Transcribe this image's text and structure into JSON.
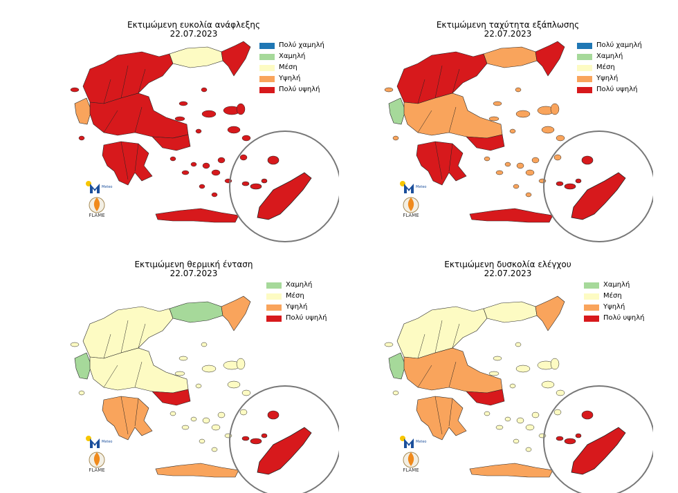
{
  "colors": {
    "very_low": "#1f77b4",
    "low": "#a6d99a",
    "medium": "#fdfbc3",
    "high": "#f9a45c",
    "very_high": "#d7191c",
    "border": "#222222",
    "inset_circle": "#777777"
  },
  "panels": [
    {
      "id": "ignition",
      "title": "Εκτιμώμενη ευκολία ανάφλεξης",
      "date": "22.07.2023",
      "legend": [
        {
          "label": "Πολύ χαμηλή",
          "level": "very_low"
        },
        {
          "label": "Χαμηλή",
          "level": "low"
        },
        {
          "label": "Μέση",
          "level": "medium"
        },
        {
          "label": "Υψηλή",
          "level": "high"
        },
        {
          "label": "Πολύ υψηλή",
          "level": "very_high"
        }
      ],
      "regions": {
        "north": "very_high",
        "northeast": "medium",
        "thrace": "very_high",
        "west": "high",
        "central": "very_high",
        "peloponnese": "very_high",
        "attica": "very_high",
        "crete": "very_high",
        "islands": "very_high",
        "rhodes": "very_high"
      }
    },
    {
      "id": "spread",
      "title": "Εκτιμώμενη ταχύτητα εξάπλωσης",
      "date": "22.07.2023",
      "legend": [
        {
          "label": "Πολύ χαμηλή",
          "level": "very_low"
        },
        {
          "label": "Χαμηλή",
          "level": "low"
        },
        {
          "label": "Μέση",
          "level": "medium"
        },
        {
          "label": "Υψηλή",
          "level": "high"
        },
        {
          "label": "Πολύ υψηλή",
          "level": "very_high"
        }
      ],
      "regions": {
        "north": "very_high",
        "northeast": "high",
        "thrace": "very_high",
        "west": "low",
        "central": "high",
        "peloponnese": "very_high",
        "attica": "very_high",
        "crete": "very_high",
        "islands": "high",
        "rhodes": "very_high"
      }
    },
    {
      "id": "thermal",
      "title": "Εκτιμώμενη θερμική ένταση",
      "date": "22.07.2023",
      "legend": [
        {
          "label": "Χαμηλή",
          "level": "low"
        },
        {
          "label": "Μέση",
          "level": "medium"
        },
        {
          "label": "Υψηλή",
          "level": "high"
        },
        {
          "label": "Πολύ υψηλή",
          "level": "very_high"
        }
      ],
      "regions": {
        "north": "medium",
        "northeast": "low",
        "thrace": "high",
        "west": "low",
        "central": "medium",
        "peloponnese": "high",
        "attica": "very_high",
        "crete": "high",
        "islands": "medium",
        "rhodes": "very_high"
      }
    },
    {
      "id": "control",
      "title": "Εκτιμώμενη δυσκολία ελέγχου",
      "date": "22.07.2023",
      "legend": [
        {
          "label": "Χαμηλή",
          "level": "low"
        },
        {
          "label": "Μέση",
          "level": "medium"
        },
        {
          "label": "Υψηλή",
          "level": "high"
        },
        {
          "label": "Πολύ υψηλή",
          "level": "very_high"
        }
      ],
      "regions": {
        "north": "medium",
        "northeast": "medium",
        "thrace": "high",
        "west": "low",
        "central": "high",
        "peloponnese": "high",
        "attica": "very_high",
        "crete": "high",
        "islands": "medium",
        "rhodes": "very_high"
      }
    }
  ],
  "logos": {
    "meteo_text": "Meteo",
    "flame_text": "FLAME"
  }
}
